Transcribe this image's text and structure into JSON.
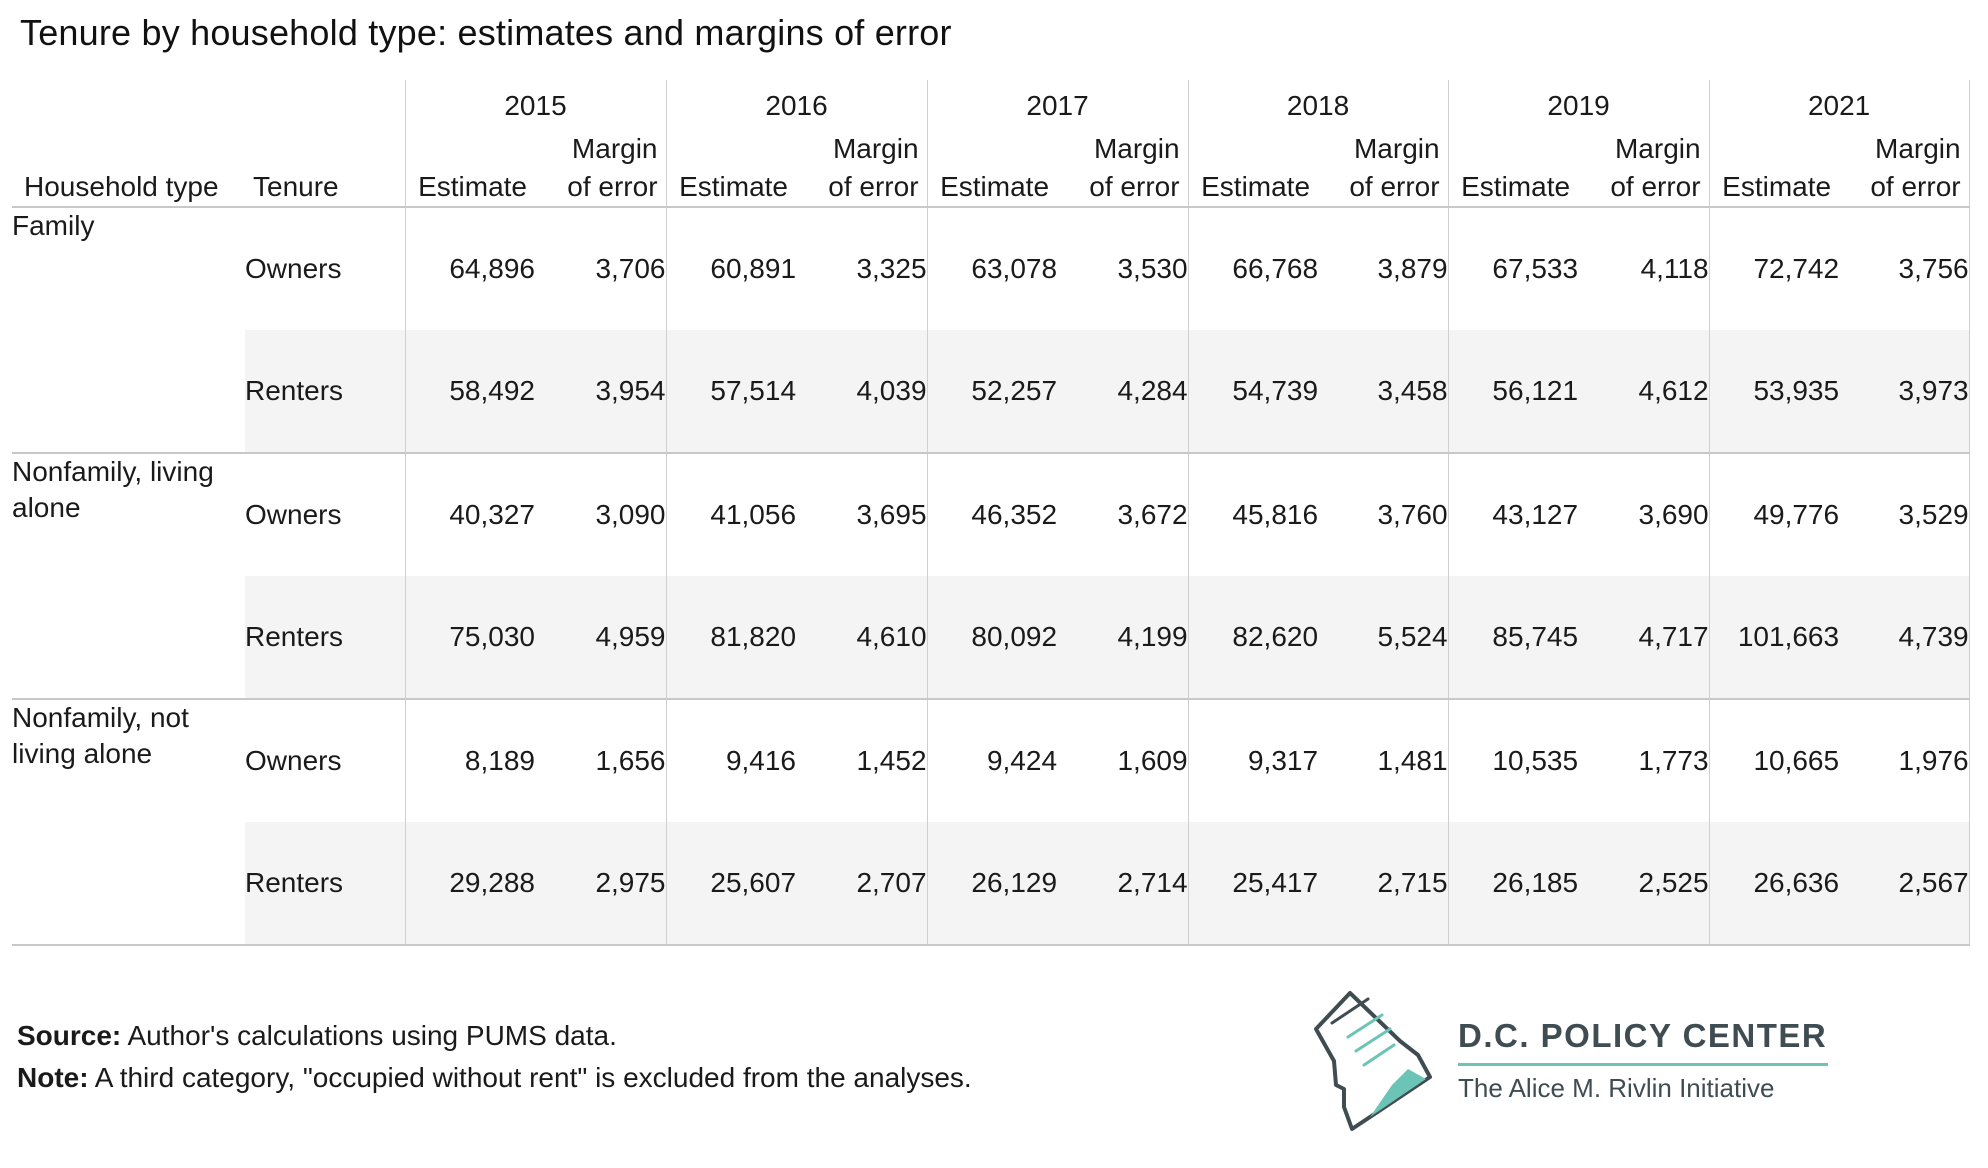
{
  "title": "Tenure by household type: estimates and margins of error",
  "header": {
    "household_type": "Household type",
    "tenure": "Tenure",
    "estimate": "Estimate",
    "moe_line1": "Margin",
    "moe_line2": "of error",
    "years": [
      "2015",
      "2016",
      "2017",
      "2018",
      "2019",
      "2021"
    ]
  },
  "groups": [
    {
      "household_line1": "Family",
      "household_line2": "",
      "rows": [
        {
          "tenure": "Owners",
          "cells": [
            "64,896",
            "3,706",
            "60,891",
            "3,325",
            "63,078",
            "3,530",
            "66,768",
            "3,879",
            "67,533",
            "4,118",
            "72,742",
            "3,756"
          ]
        },
        {
          "tenure": "Renters",
          "cells": [
            "58,492",
            "3,954",
            "57,514",
            "4,039",
            "52,257",
            "4,284",
            "54,739",
            "3,458",
            "56,121",
            "4,612",
            "53,935",
            "3,973"
          ]
        }
      ]
    },
    {
      "household_line1": "Nonfamily, living",
      "household_line2": "alone",
      "rows": [
        {
          "tenure": "Owners",
          "cells": [
            "40,327",
            "3,090",
            "41,056",
            "3,695",
            "46,352",
            "3,672",
            "45,816",
            "3,760",
            "43,127",
            "3,690",
            "49,776",
            "3,529"
          ]
        },
        {
          "tenure": "Renters",
          "cells": [
            "75,030",
            "4,959",
            "81,820",
            "4,610",
            "80,092",
            "4,199",
            "82,620",
            "5,524",
            "85,745",
            "4,717",
            "101,663",
            "4,739"
          ]
        }
      ]
    },
    {
      "household_line1": "Nonfamily, not",
      "household_line2": "living alone",
      "rows": [
        {
          "tenure": "Owners",
          "cells": [
            "8,189",
            "1,656",
            "9,416",
            "1,452",
            "9,424",
            "1,609",
            "9,317",
            "1,481",
            "10,535",
            "1,773",
            "10,665",
            "1,976"
          ]
        },
        {
          "tenure": "Renters",
          "cells": [
            "29,288",
            "2,975",
            "25,607",
            "2,707",
            "26,129",
            "2,714",
            "25,417",
            "2,715",
            "26,185",
            "2,525",
            "26,636",
            "2,567"
          ]
        }
      ]
    }
  ],
  "footer": {
    "source_label": "Source:",
    "source_text": "Author's calculations using PUMS data.",
    "note_label": "Note:",
    "note_text": "A third category, \"occupied without rent\" is excluded from the analyses."
  },
  "logo": {
    "name": "D.C. POLICY CENTER",
    "subtitle": "The Alice M. Rivlin Initiative",
    "accent_color": "#6cc4b7",
    "text_color": "#3f4c52"
  },
  "chart_data": {
    "type": "table",
    "title": "Tenure by household type: estimates and margins of error",
    "columns": [
      "Household type",
      "Tenure",
      "2015 Estimate",
      "2015 Margin of error",
      "2016 Estimate",
      "2016 Margin of error",
      "2017 Estimate",
      "2017 Margin of error",
      "2018 Estimate",
      "2018 Margin of error",
      "2019 Estimate",
      "2019 Margin of error",
      "2021 Estimate",
      "2021 Margin of error"
    ],
    "rows": [
      [
        "Family",
        "Owners",
        64896,
        3706,
        60891,
        3325,
        63078,
        3530,
        66768,
        3879,
        67533,
        4118,
        72742,
        3756
      ],
      [
        "Family",
        "Renters",
        58492,
        3954,
        57514,
        4039,
        52257,
        4284,
        54739,
        3458,
        56121,
        4612,
        53935,
        3973
      ],
      [
        "Nonfamily, living alone",
        "Owners",
        40327,
        3090,
        41056,
        3695,
        46352,
        3672,
        45816,
        3760,
        43127,
        3690,
        49776,
        3529
      ],
      [
        "Nonfamily, living alone",
        "Renters",
        75030,
        4959,
        81820,
        4610,
        80092,
        4199,
        82620,
        5524,
        85745,
        4717,
        101663,
        4739
      ],
      [
        "Nonfamily, not living alone",
        "Owners",
        8189,
        1656,
        9416,
        1452,
        9424,
        1609,
        9317,
        1481,
        10535,
        1773,
        10665,
        1976
      ],
      [
        "Nonfamily, not living alone",
        "Renters",
        29288,
        2975,
        25607,
        2707,
        26129,
        2714,
        25417,
        2715,
        26185,
        2525,
        26636,
        2567
      ]
    ]
  }
}
